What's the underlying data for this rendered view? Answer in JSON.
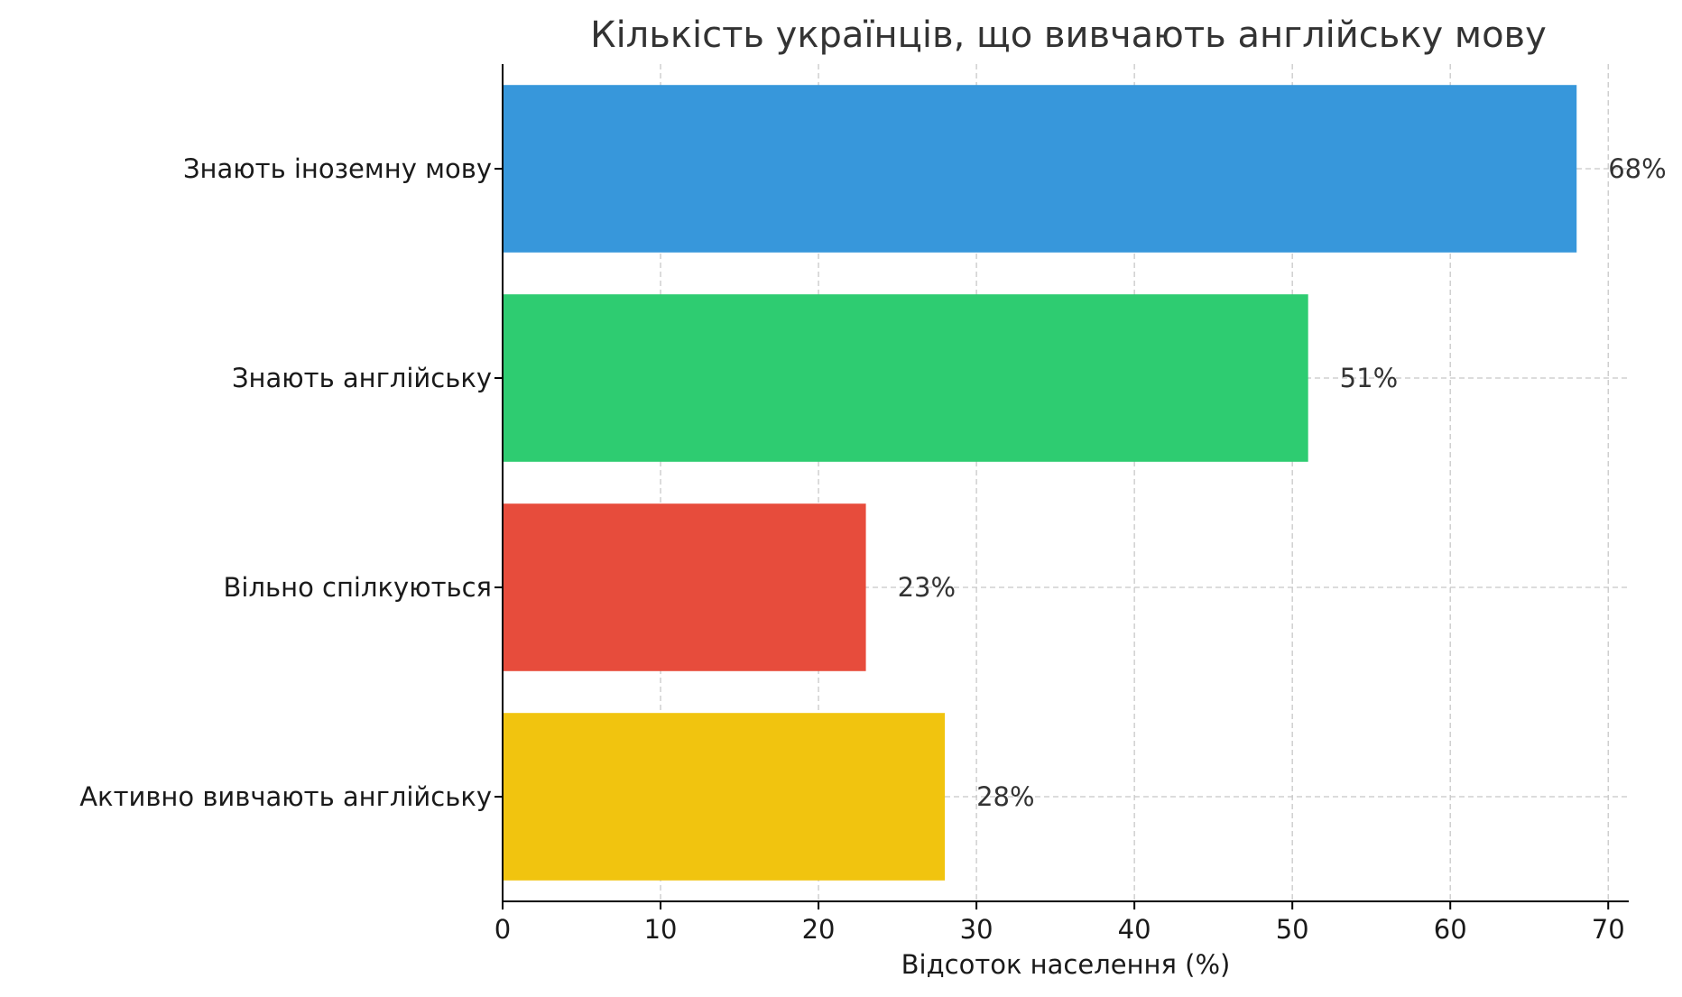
{
  "chart_data": {
    "type": "bar",
    "orientation": "horizontal",
    "title": "Кількість українців, що вивчають англійську мову",
    "xlabel": "Відсоток населення (%)",
    "ylabel": "",
    "xlim": [
      0,
      71.3
    ],
    "xticks": [
      0,
      10,
      20,
      30,
      40,
      50,
      60,
      70
    ],
    "grid": true,
    "categories": [
      "Знають іноземну мову",
      "Знають англійську",
      "Вільно спілкуються",
      "Активно вивчають англійську"
    ],
    "values": [
      68,
      51,
      23,
      28
    ],
    "data_labels": [
      "68%",
      "51%",
      "23%",
      "28%"
    ],
    "colors": [
      "#3797db",
      "#2ecc71",
      "#e74c3c",
      "#f1c40f"
    ]
  }
}
